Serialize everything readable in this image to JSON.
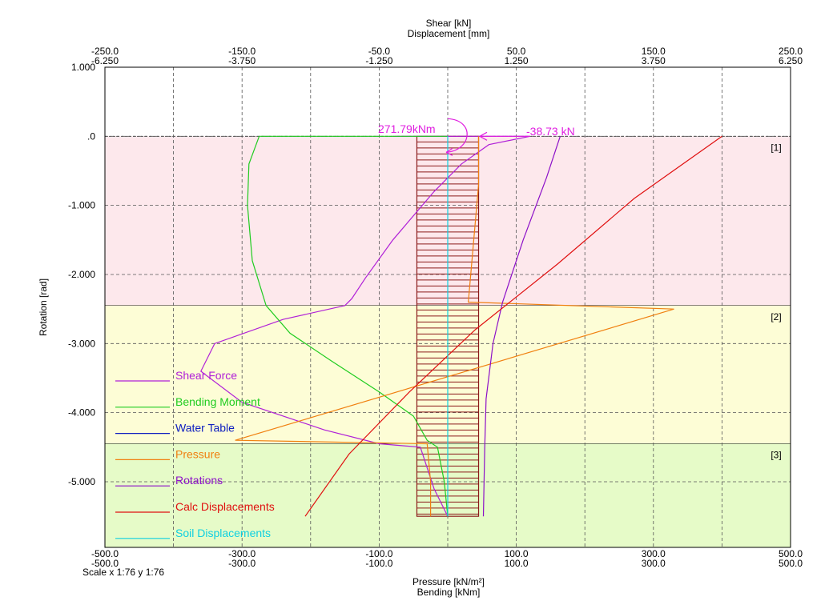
{
  "chart_data": {
    "type": "line",
    "top_axis": {
      "title_line1": "Shear [kN]",
      "title_line2": "Displacement [mm]",
      "shear_ticks": [
        -250.0,
        -150.0,
        -50.0,
        50.0,
        150.0,
        250.0
      ],
      "shear_labels": [
        "-250.0",
        "-150.0",
        "-50.0",
        "50.0",
        "150.0",
        "250.0"
      ],
      "displacement_labels": [
        "-6.250",
        "-3.750",
        "-1.250",
        "1.250",
        "3.750",
        "6.250"
      ],
      "shear_range": [
        -250,
        250
      ],
      "displacement_range": [
        -6.25,
        6.25
      ]
    },
    "bottom_axis": {
      "title_line1": "Pressure [kN/m²]",
      "title_line2": "Bending [kNm]",
      "ticks": [
        -500,
        -300,
        -100,
        100,
        300,
        500
      ],
      "pressure_labels": [
        "-500.0",
        "-300.0",
        "-100.0",
        "100.0",
        "300.0",
        "500.0"
      ],
      "bending_labels": [
        "-500.0",
        "-300.0",
        "-100.0",
        "100.0",
        "300.0",
        "500.0"
      ],
      "range": [
        -500,
        500
      ],
      "scale_text": "Scale x 1:76  y 1:76"
    },
    "y_axis": {
      "title": "Rotation [rad]",
      "ticks": [
        1.0,
        0.0,
        -1.0,
        -2.0,
        -3.0,
        -4.0,
        -5.0
      ],
      "tick_labels": [
        "1.000",
        ".0",
        "-1.000",
        "-2.000",
        "-3.000",
        "-4.000",
        "-5.000"
      ],
      "range": [
        -5.95,
        1.0
      ],
      "grid": true
    },
    "layers": [
      {
        "label": "[1]",
        "top": 0.0,
        "bottom": -2.45,
        "color": "#fde8ec"
      },
      {
        "label": "[2]",
        "top": -2.45,
        "bottom": -4.45,
        "color": "#fdfdd6"
      },
      {
        "label": "[3]",
        "top": -4.45,
        "bottom": -5.95,
        "color": "#e6fbc8"
      }
    ],
    "wall": {
      "x_left": -45,
      "x_right": 45,
      "top": 0.0,
      "bottom": -5.5,
      "color": "#8b1a1a"
    },
    "annotations": {
      "moment_label": "271.79kNm",
      "shear_label": "-38.73 kN"
    },
    "series": [
      {
        "name": "Shear Force",
        "color": "#b020d8",
        "axis": "shear",
        "points": [
          [
            -38.73,
            0.0
          ],
          [
            60,
            0.0
          ],
          [
            30,
            -0.12
          ],
          [
            10,
            -0.4
          ],
          [
            -10,
            -0.8
          ],
          [
            -40,
            -1.5
          ],
          [
            -60,
            -2.05
          ],
          [
            -70,
            -2.35
          ],
          [
            -75,
            -2.45
          ],
          [
            -120,
            -2.65
          ],
          [
            -170,
            -3.0
          ],
          [
            -180,
            -3.4
          ],
          [
            -150,
            -3.85
          ],
          [
            -90,
            -4.25
          ],
          [
            -50,
            -4.45
          ],
          [
            -20,
            -4.5
          ],
          [
            -10,
            -5.1
          ],
          [
            0,
            -5.5
          ]
        ]
      },
      {
        "name": "Bending Moment",
        "color": "#20cc20",
        "axis": "bottom",
        "points": [
          [
            0,
            0.0
          ],
          [
            -275,
            0.0
          ],
          [
            -290,
            -0.4
          ],
          [
            -292,
            -1.0
          ],
          [
            -285,
            -1.8
          ],
          [
            -265,
            -2.45
          ],
          [
            -230,
            -2.85
          ],
          [
            -170,
            -3.25
          ],
          [
            -100,
            -3.7
          ],
          [
            -50,
            -4.05
          ],
          [
            -30,
            -4.4
          ],
          [
            -15,
            -4.5
          ],
          [
            -5,
            -5.0
          ],
          [
            0,
            -5.5
          ]
        ]
      },
      {
        "name": "Water Table",
        "color": "#1020c0",
        "axis": "bottom",
        "points": []
      },
      {
        "name": "Pressure",
        "color": "#f08010",
        "axis": "bottom",
        "points": [
          [
            45,
            0.0
          ],
          [
            45,
            -0.7
          ],
          [
            30,
            -2.4
          ],
          [
            330,
            -2.5
          ],
          [
            -310,
            -4.4
          ],
          [
            -30,
            -4.45
          ],
          [
            -25,
            -5.0
          ],
          [
            -25,
            -5.5
          ]
        ]
      },
      {
        "name": "Rotations",
        "color": "#8c10c8",
        "axis": "shear",
        "points": [
          [
            82,
            0.0
          ],
          [
            72,
            -0.6
          ],
          [
            55,
            -1.5
          ],
          [
            40,
            -2.4
          ],
          [
            33,
            -3.0
          ],
          [
            28,
            -3.8
          ],
          [
            27,
            -4.5
          ],
          [
            26,
            -5.5
          ]
        ]
      },
      {
        "name": "Calc Displacements",
        "color": "#e01010",
        "axis": "displacement",
        "points": [
          [
            5.0,
            0.0
          ],
          [
            3.4,
            -0.9
          ],
          [
            2.0,
            -1.85
          ],
          [
            0.5,
            -2.8
          ],
          [
            -0.7,
            -3.7
          ],
          [
            -1.8,
            -4.6
          ],
          [
            -2.6,
            -5.5
          ]
        ]
      },
      {
        "name": "Soil Displacements",
        "color": "#10d0e0",
        "axis": "bottom",
        "points": [
          [
            0,
            0.0
          ],
          [
            0,
            -5.5
          ]
        ]
      }
    ],
    "legend_position": "left"
  }
}
